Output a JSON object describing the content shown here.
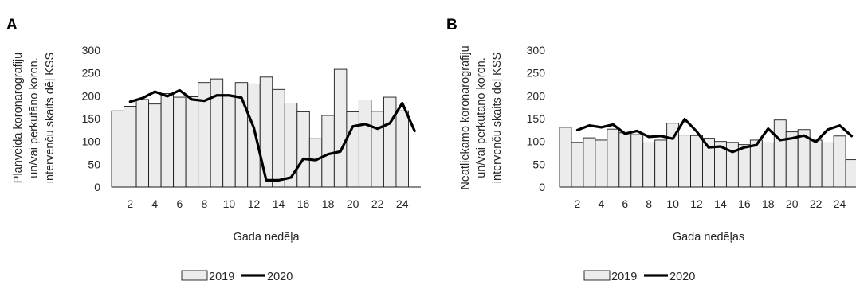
{
  "chart_data": [
    {
      "type": "bar",
      "panel_label": "A",
      "title": "",
      "xlabel": "Gada nedēļa",
      "ylabel_lines": [
        "Plānveida koronarogrāfiju",
        "un/vai perkutāno koron.",
        "intervenču skaits dēļ KSS"
      ],
      "ylim": [
        0,
        300
      ],
      "yticks": [
        0,
        50,
        100,
        150,
        200,
        250,
        300
      ],
      "x": [
        1,
        2,
        3,
        4,
        5,
        6,
        7,
        8,
        9,
        10,
        11,
        12,
        13,
        14,
        15,
        16,
        17,
        18,
        19,
        20,
        21,
        22,
        23,
        24,
        25
      ],
      "xticks": [
        2,
        4,
        6,
        8,
        10,
        12,
        14,
        16,
        18,
        20,
        22,
        24
      ],
      "grid": false,
      "legend_position": "bottom",
      "series": [
        {
          "name": "2019",
          "type": "bar",
          "color": "#ececec",
          "edge": "#1a1a1a",
          "values": [
            167,
            177,
            192,
            182,
            205,
            197,
            198,
            229,
            237,
            201,
            229,
            226,
            241,
            214,
            184,
            165,
            106,
            157,
            258,
            165,
            191,
            166,
            197,
            167,
            null
          ]
        },
        {
          "name": "2020",
          "type": "line",
          "color": "#000000",
          "values": [
            null,
            187,
            195,
            209,
            199,
            212,
            192,
            189,
            201,
            201,
            196,
            130,
            15,
            15,
            21,
            62,
            59,
            72,
            78,
            133,
            138,
            128,
            140,
            184,
            123
          ]
        }
      ]
    },
    {
      "type": "bar",
      "panel_label": "B",
      "title": "",
      "xlabel": "Gada nedēļas",
      "ylabel_lines": [
        "Neatliekamo koronarogrāfiju",
        "un/vai perkutāno koron.",
        "intervenču skaits dēļ KSS"
      ],
      "ylim": [
        0,
        300
      ],
      "yticks": [
        0,
        50,
        100,
        150,
        200,
        250,
        300
      ],
      "x": [
        1,
        2,
        3,
        4,
        5,
        6,
        7,
        8,
        9,
        10,
        11,
        12,
        13,
        14,
        15,
        16,
        17,
        18,
        19,
        20,
        21,
        22,
        23,
        24,
        25
      ],
      "xticks": [
        2,
        4,
        6,
        8,
        10,
        12,
        14,
        16,
        18,
        20,
        22,
        24
      ],
      "grid": false,
      "legend_position": "bottom",
      "series": [
        {
          "name": "2019",
          "type": "bar",
          "color": "#ececec",
          "edge": "#1a1a1a",
          "values": [
            131,
            98,
            108,
            103,
            127,
            119,
            115,
            97,
            103,
            140,
            114,
            113,
            107,
            100,
            98,
            93,
            103,
            97,
            147,
            121,
            126,
            103,
            97,
            112,
            60
          ]
        },
        {
          "name": "2020",
          "type": "line",
          "color": "#000000",
          "values": [
            null,
            125,
            135,
            131,
            137,
            117,
            123,
            110,
            112,
            106,
            149,
            122,
            87,
            89,
            77,
            87,
            92,
            128,
            103,
            107,
            113,
            99,
            126,
            135,
            112
          ]
        }
      ]
    }
  ]
}
